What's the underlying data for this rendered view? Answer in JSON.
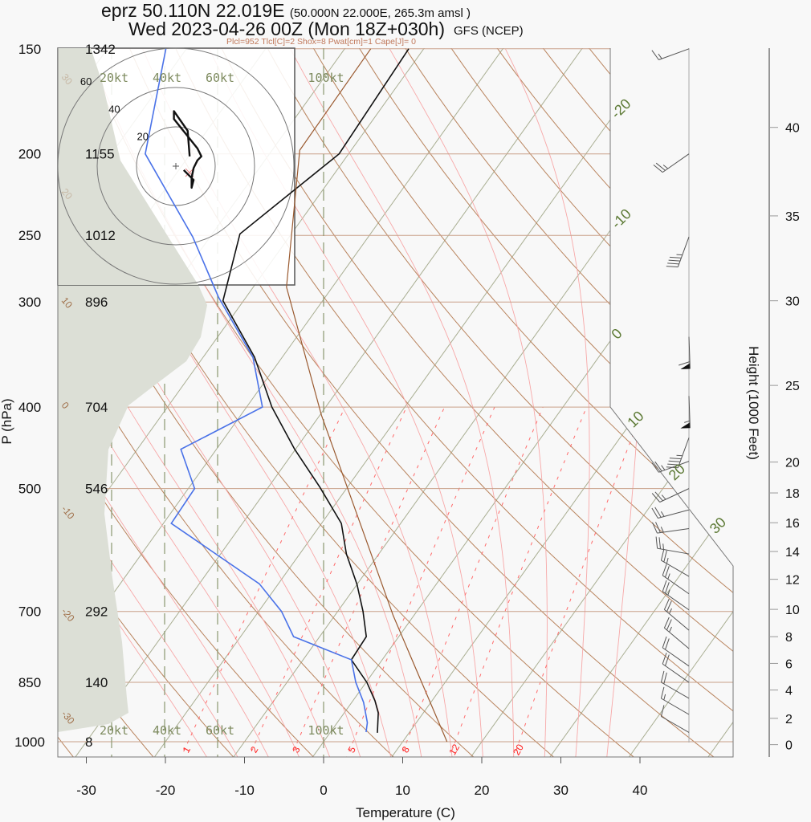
{
  "header": {
    "station": "eprz 50.110N 22.019E",
    "gridpoint": "(50.000N 22.000E, 265.3m amsl )",
    "valid": "Wed 2023-04-26 00Z (Mon 18Z+030h)",
    "model": "GFS (NCEP)",
    "indices": "Plcl=952 Tlcl[C]=2 Shox=8 Pwat[cm]=1 Cape[J]= 0"
  },
  "colors": {
    "temperature": "#111111",
    "dewpoint": "#4a72e8",
    "parcel": "#9a5a30",
    "isotherm": "#a9ae92",
    "dry_adiabat": "#b9845e",
    "moist_adiabat": "#f7a8a8",
    "mixing_ratio": "#ff6a6a",
    "shade": "#dcdfd6"
  },
  "chart_data": {
    "type": "line",
    "title": "Skew-T log-P sounding",
    "xlabel": "Temperature (C)",
    "ylabel": "P (hPa)",
    "y2label": "Height (1000 Feet)",
    "xlim": [
      -34,
      46
    ],
    "ylim": [
      1042,
      150
    ],
    "x_ticks": [
      -30,
      -20,
      -10,
      0,
      10,
      20,
      30,
      40
    ],
    "pressure_levels": [
      {
        "p": 150,
        "label": "150",
        "height_m": "1342"
      },
      {
        "p": 200,
        "label": "200",
        "height_m": "1155"
      },
      {
        "p": 250,
        "label": "250",
        "height_m": "1012"
      },
      {
        "p": 300,
        "label": "300",
        "height_m": "896"
      },
      {
        "p": 400,
        "label": "400",
        "height_m": "704"
      },
      {
        "p": 500,
        "label": "500",
        "height_m": "546"
      },
      {
        "p": 700,
        "label": "700",
        "height_m": "292"
      },
      {
        "p": 850,
        "label": "850",
        "height_m": "140"
      },
      {
        "p": 1000,
        "label": "1000",
        "height_m": "8"
      }
    ],
    "height_ticks": [
      {
        "p": 1008,
        "label": "0"
      },
      {
        "p": 938,
        "label": "2"
      },
      {
        "p": 868,
        "label": "4"
      },
      {
        "p": 807,
        "label": "6"
      },
      {
        "p": 750,
        "label": "8"
      },
      {
        "p": 696,
        "label": "10"
      },
      {
        "p": 641,
        "label": "12"
      },
      {
        "p": 594,
        "label": "14"
      },
      {
        "p": 549,
        "label": "16"
      },
      {
        "p": 506,
        "label": "18"
      },
      {
        "p": 465,
        "label": "20"
      },
      {
        "p": 377,
        "label": "25"
      },
      {
        "p": 299,
        "label": "30"
      },
      {
        "p": 237,
        "label": "35"
      },
      {
        "p": 186,
        "label": "40"
      }
    ],
    "isotherm_labels": [
      {
        "t": -20,
        "label": "-20"
      },
      {
        "t": -10,
        "label": "-10"
      },
      {
        "t": 0,
        "label": "0"
      },
      {
        "t": 10,
        "label": "10"
      },
      {
        "t": 20,
        "label": "20"
      },
      {
        "t": 30,
        "label": "30"
      }
    ],
    "theta_labels": [
      {
        "theta_c": 30,
        "label": "30"
      },
      {
        "theta_c": 20,
        "label": "20"
      },
      {
        "theta_c": 10,
        "label": "10"
      },
      {
        "theta_c": 0,
        "label": "0"
      },
      {
        "theta_c": -10,
        "label": "-10"
      },
      {
        "theta_c": -20,
        "label": "-20"
      },
      {
        "theta_c": -30,
        "label": "-30"
      }
    ],
    "mixing_ratio_labels": [
      "1",
      "2",
      "3",
      "5",
      "8",
      "12",
      "20"
    ],
    "series": [
      {
        "name": "temperature",
        "points": [
          [
            976,
            6.0
          ],
          [
            924,
            4.3
          ],
          [
            894,
            2.8
          ],
          [
            850,
            0.1
          ],
          [
            799,
            -3.9
          ],
          [
            750,
            -4.1
          ],
          [
            700,
            -6.8
          ],
          [
            650,
            -10.0
          ],
          [
            598,
            -14.1
          ],
          [
            550,
            -17.5
          ],
          [
            498,
            -23.5
          ],
          [
            449,
            -30.1
          ],
          [
            400,
            -36.8
          ],
          [
            349,
            -43.5
          ],
          [
            299,
            -52.6
          ],
          [
            249,
            -56.5
          ],
          [
            200,
            -51.2
          ],
          [
            150,
            -51.9
          ]
        ]
      },
      {
        "name": "dewpoint",
        "points": [
          [
            974,
            4.5
          ],
          [
            949,
            3.8
          ],
          [
            898,
            1.5
          ],
          [
            850,
            -1.3
          ],
          [
            799,
            -3.9
          ],
          [
            750,
            -13.3
          ],
          [
            700,
            -17.1
          ],
          [
            649,
            -22.4
          ],
          [
            550,
            -39.0
          ],
          [
            500,
            -39.2
          ],
          [
            449,
            -44.5
          ],
          [
            400,
            -38.0
          ],
          [
            349,
            -43.7
          ],
          [
            296,
            -53.5
          ],
          [
            251,
            -62.2
          ],
          [
            200,
            -75.7
          ],
          [
            150,
            -82.6
          ]
        ]
      },
      {
        "name": "parcel",
        "points": [
          [
            1000,
            15.6
          ],
          [
            708,
            -2.6
          ],
          [
            409,
            -29.8
          ],
          [
            288,
            -45.8
          ],
          [
            198,
            -56.5
          ],
          [
            150,
            -56.7
          ]
        ]
      }
    ],
    "hodograph": {
      "ring_labels": [
        "20",
        "40",
        "60"
      ],
      "speed_labels": [
        "20kt",
        "40kt",
        "60kt",
        "100kt"
      ],
      "trace_uv_kt": [
        [
          4,
          -2
        ],
        [
          9,
          -7
        ],
        [
          8,
          -11
        ],
        [
          8,
          -6
        ],
        [
          9,
          -1
        ],
        [
          11,
          3
        ],
        [
          13,
          5
        ],
        [
          11,
          9
        ],
        [
          -1,
          24
        ],
        [
          -1,
          28
        ],
        [
          6,
          18
        ],
        [
          7,
          5
        ]
      ]
    },
    "winds": [
      {
        "p": 150,
        "dir": 250,
        "spd": 15
      },
      {
        "p": 200,
        "dir": 235,
        "spd": 25
      },
      {
        "p": 251,
        "dir": 200,
        "spd": 45
      },
      {
        "p": 330,
        "dir": 178,
        "spd": 60
      },
      {
        "p": 388,
        "dir": 178,
        "spd": 55
      },
      {
        "p": 435,
        "dir": 200,
        "spd": 45
      },
      {
        "p": 464,
        "dir": 250,
        "spd": 25
      },
      {
        "p": 500,
        "dir": 245,
        "spd": 25
      },
      {
        "p": 530,
        "dir": 255,
        "spd": 25
      },
      {
        "p": 558,
        "dir": 262,
        "spd": 25
      },
      {
        "p": 598,
        "dir": 280,
        "spd": 25
      },
      {
        "p": 636,
        "dir": 300,
        "spd": 25
      },
      {
        "p": 667,
        "dir": 305,
        "spd": 25
      },
      {
        "p": 697,
        "dir": 305,
        "spd": 25
      },
      {
        "p": 737,
        "dir": 310,
        "spd": 25
      },
      {
        "p": 775,
        "dir": 310,
        "spd": 25
      },
      {
        "p": 813,
        "dir": 305,
        "spd": 20
      },
      {
        "p": 850,
        "dir": 305,
        "spd": 20
      },
      {
        "p": 888,
        "dir": 300,
        "spd": 20
      },
      {
        "p": 928,
        "dir": 300,
        "spd": 15
      },
      {
        "p": 975,
        "dir": 300,
        "spd": 10
      }
    ]
  }
}
